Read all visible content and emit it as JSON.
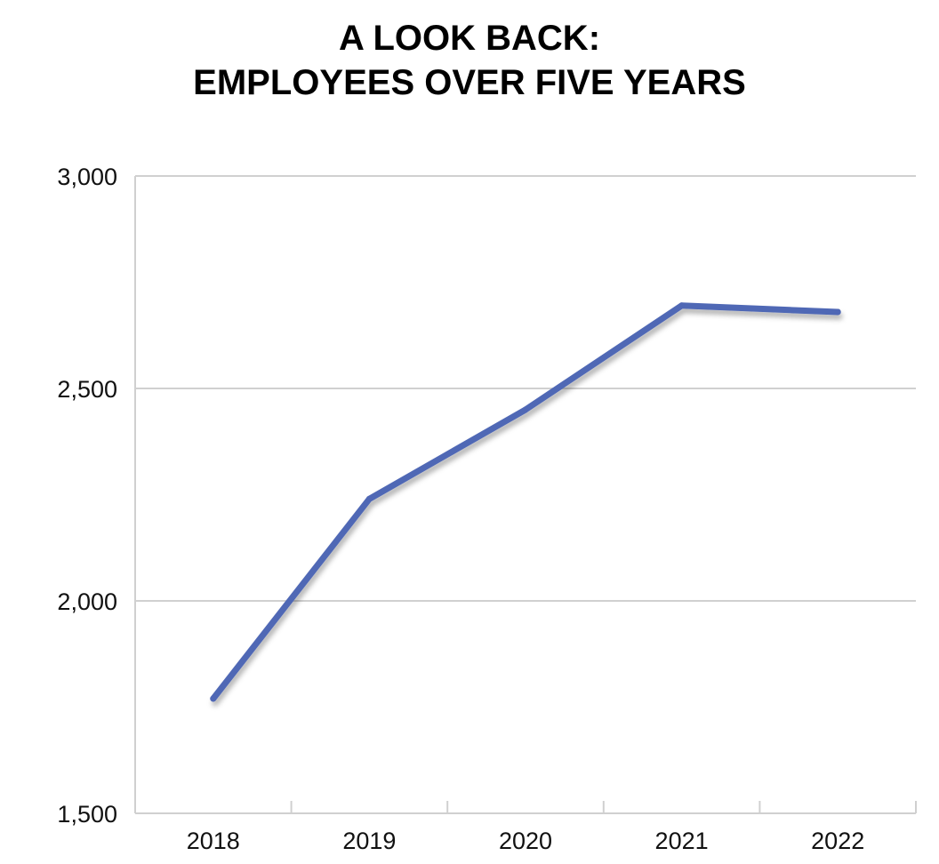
{
  "chart_data": {
    "type": "line",
    "title": [
      "A LOOK BACK:",
      "EMPLOYEES OVER FIVE YEARS"
    ],
    "xlabel": "",
    "ylabel": "",
    "categories": [
      "2018",
      "2019",
      "2020",
      "2021",
      "2022"
    ],
    "values": [
      1770,
      2240,
      2450,
      2695,
      2680
    ],
    "ylim": [
      1500,
      3000
    ],
    "yticks": [
      1500,
      2000,
      2500,
      3000
    ],
    "ytick_labels": [
      "1,500",
      "2,000",
      "2,500",
      "3,000"
    ],
    "grid": "horizontal",
    "legend": "none",
    "line_color": "#4f67b5",
    "grid_color": "#d0d0d0"
  }
}
